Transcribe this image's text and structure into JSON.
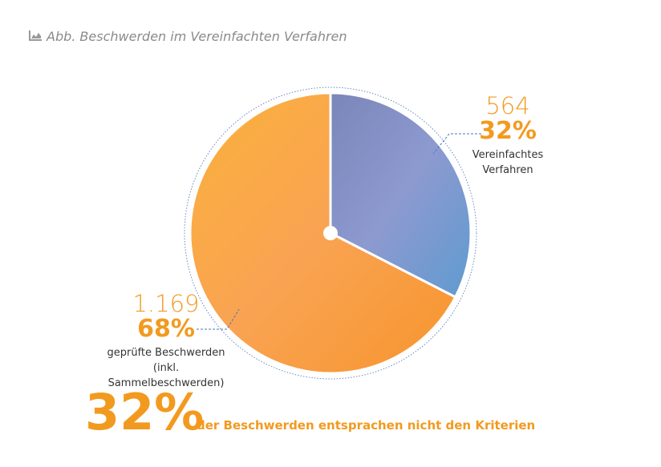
{
  "chart_data": {
    "type": "pie",
    "title": "Abb. Beschwerden im Vereinfachten Verfahren",
    "categories": [
      "Vereinfachtes\nVerfahren",
      "geprüfte Beschwerden\n(inkl. Sammelbeschwerden)"
    ],
    "values": [
      564,
      1169
    ],
    "value_labels": [
      "564",
      "1.169"
    ],
    "share_labels": [
      "32%",
      "68%"
    ],
    "colors": [
      "#7f93c8",
      "#f7a63c"
    ],
    "annotation": {
      "value": "32%",
      "text": "der Beschwerden entsprachen nicht den Kriterien"
    }
  }
}
